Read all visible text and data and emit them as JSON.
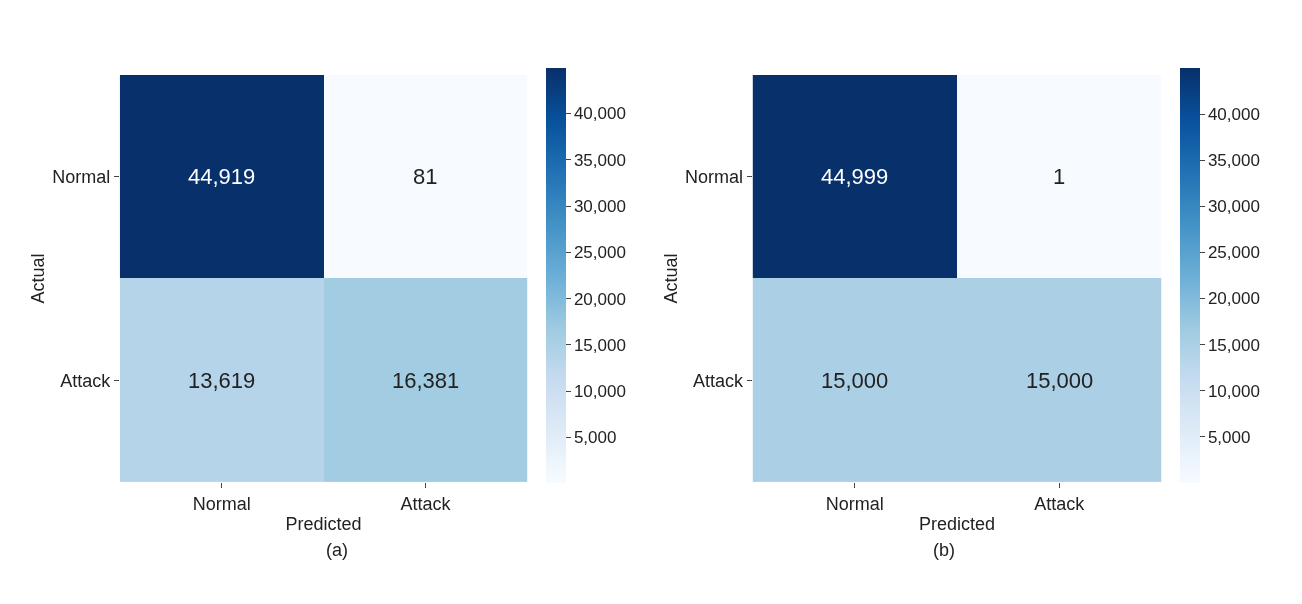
{
  "chart_data": [
    {
      "type": "heatmap",
      "xlabel": "Predicted",
      "ylabel": "Actual",
      "categories": [
        "Normal",
        "Attack"
      ],
      "y_categories": [
        "Normal",
        "Attack"
      ],
      "cells": [
        [
          44919,
          81
        ],
        [
          13619,
          16381
        ]
      ],
      "cell_labels": [
        [
          "44,919",
          "81"
        ],
        [
          "13,619",
          "16,381"
        ]
      ],
      "clim": [
        81,
        44919
      ],
      "cticks": [
        {
          "value": 5000,
          "label": "5,000"
        },
        {
          "value": 10000,
          "label": "10,000"
        },
        {
          "value": 15000,
          "label": "15,000"
        },
        {
          "value": 20000,
          "label": "20,000"
        },
        {
          "value": 25000,
          "label": "25,000"
        },
        {
          "value": 30000,
          "label": "30,000"
        },
        {
          "value": 35000,
          "label": "35,000"
        },
        {
          "value": 40000,
          "label": "40,000"
        }
      ],
      "annotations": [
        "(a)"
      ]
    },
    {
      "type": "heatmap",
      "xlabel": "Predicted",
      "ylabel": "Actual",
      "categories": [
        "Normal",
        "Attack"
      ],
      "y_categories": [
        "Normal",
        "Attack"
      ],
      "cells": [
        [
          44999,
          1
        ],
        [
          15000,
          15000
        ]
      ],
      "cell_labels": [
        [
          "44,999",
          "1"
        ],
        [
          "15,000",
          "15,000"
        ]
      ],
      "clim": [
        1,
        44999
      ],
      "cticks": [
        {
          "value": 5000,
          "label": "5,000"
        },
        {
          "value": 10000,
          "label": "10,000"
        },
        {
          "value": 15000,
          "label": "15,000"
        },
        {
          "value": 20000,
          "label": "20,000"
        },
        {
          "value": 25000,
          "label": "25,000"
        },
        {
          "value": 30000,
          "label": "30,000"
        },
        {
          "value": 35000,
          "label": "35,000"
        },
        {
          "value": 40000,
          "label": "40,000"
        }
      ],
      "annotations": [
        "(b)"
      ]
    }
  ]
}
